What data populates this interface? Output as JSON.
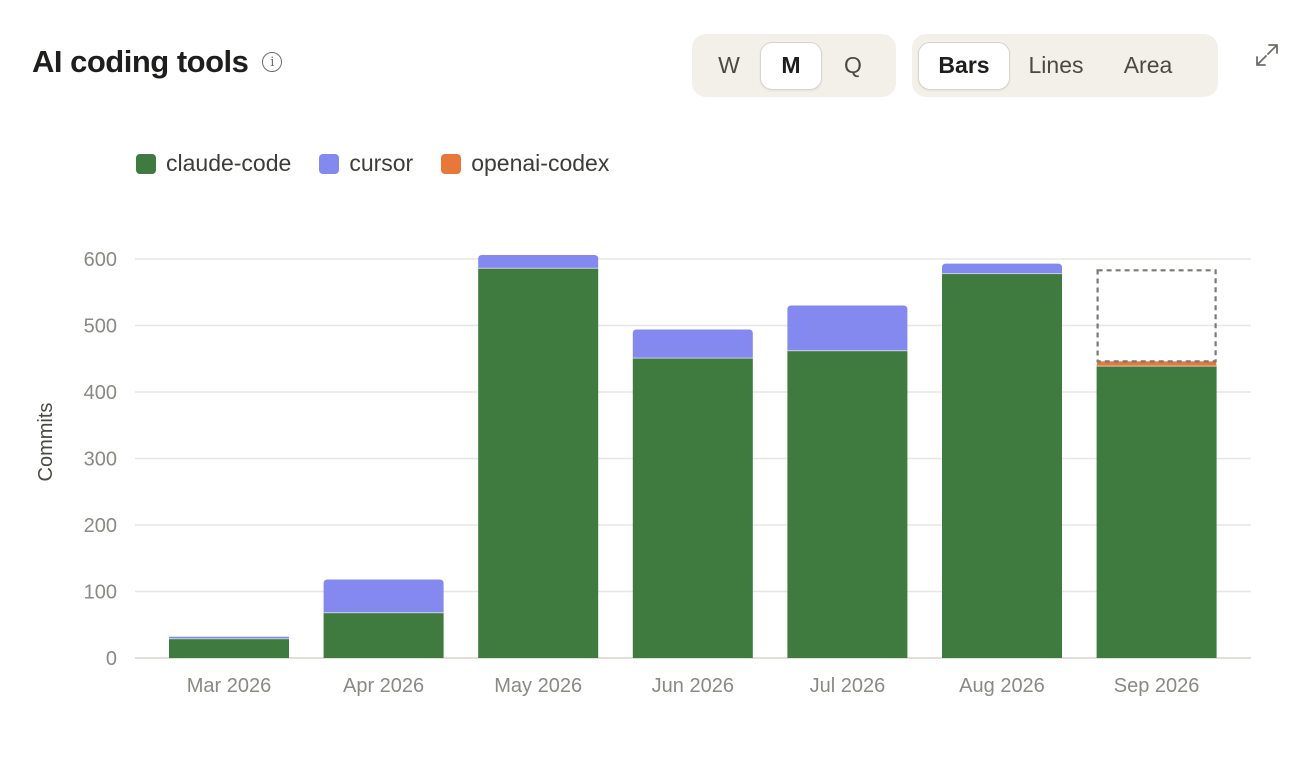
{
  "header": {
    "title": "AI coding tools",
    "info_icon": "info-icon"
  },
  "period_toggle": {
    "options": [
      "W",
      "M",
      "Q"
    ],
    "selected": "M"
  },
  "view_toggle": {
    "options": [
      "Bars",
      "Lines",
      "Area"
    ],
    "selected": "Bars"
  },
  "expand_icon": "expand-icon",
  "chart_data": {
    "type": "bar",
    "stacked": true,
    "categories": [
      "Mar 2026",
      "Apr 2026",
      "May 2026",
      "Jun 2026",
      "Jul 2026",
      "Aug 2026",
      "Sep 2026"
    ],
    "series": [
      {
        "name": "claude-code",
        "color": "#3f7b3f",
        "values": [
          29,
          68,
          586,
          451,
          462,
          578,
          439
        ]
      },
      {
        "name": "cursor",
        "color": "#8489f0",
        "values": [
          3,
          50,
          20,
          43,
          68,
          15,
          0
        ]
      },
      {
        "name": "openai-codex",
        "color": "#e8783a",
        "values": [
          0,
          0,
          0,
          0,
          0,
          0,
          7
        ]
      }
    ],
    "projected": {
      "category": "Sep 2026",
      "total": 583
    },
    "ylabel": "Commits",
    "xlabel": "",
    "ylim": [
      0,
      600
    ],
    "yticks": [
      0,
      100,
      200,
      300,
      400,
      500,
      600
    ],
    "grid": true,
    "legend": "top-left"
  }
}
